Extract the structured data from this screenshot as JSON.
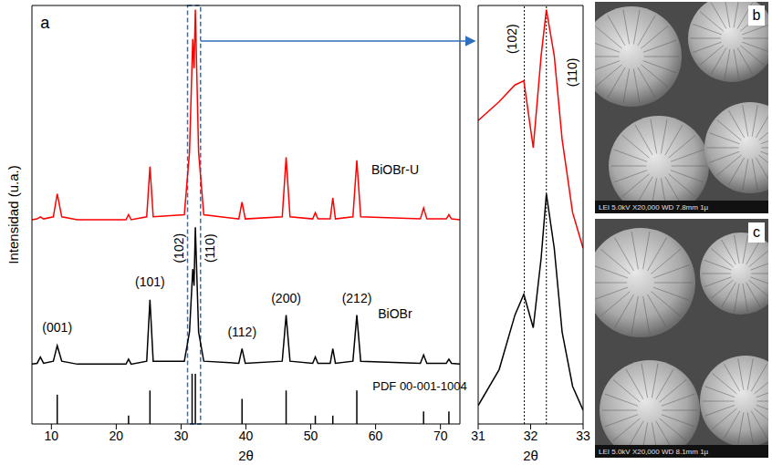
{
  "chart_data": [
    {
      "type": "line",
      "panel": "a",
      "xlabel": "2θ",
      "ylabel": "Intensidad (u.a.)",
      "xlim": [
        7,
        73
      ],
      "xticks": [
        10,
        20,
        30,
        40,
        50,
        60,
        70
      ],
      "ylim": [
        0,
        100
      ],
      "tick_labels": "x",
      "series": [
        {
          "name": "BiOBr-U",
          "color": "#ff0000",
          "x": [
            7,
            7.8,
            8.3,
            8.8,
            10.3,
            10.9,
            11.6,
            14,
            21.5,
            21.9,
            22.3,
            24.7,
            25.2,
            25.7,
            30.5,
            31.3,
            31.8,
            32.0,
            32.2,
            32.7,
            33.5,
            38.9,
            39.4,
            39.9,
            45.6,
            46.2,
            46.8,
            50.3,
            50.7,
            51.1,
            53.0,
            53.4,
            53.8,
            56.5,
            57.1,
            57.7,
            66.9,
            67.4,
            67.9,
            70.9,
            71.3,
            71.7,
            73
          ],
          "values": [
            48.8,
            49,
            49.5,
            49,
            49.5,
            55,
            49.5,
            48.8,
            48.8,
            50,
            48.8,
            49.5,
            61.5,
            49.5,
            50,
            65,
            92,
            85,
            99,
            65,
            50,
            49,
            53,
            49,
            49.5,
            63.7,
            49.5,
            49,
            50.5,
            49,
            49,
            54,
            49,
            49.5,
            63,
            49.5,
            49,
            51.6,
            49,
            49,
            50,
            49,
            48.8
          ]
        },
        {
          "name": "BiOBr",
          "color": "#000000",
          "x": [
            7,
            7.8,
            8.3,
            8.8,
            10.3,
            10.9,
            11.6,
            14,
            21.5,
            21.9,
            22.3,
            24.7,
            25.2,
            25.7,
            30.5,
            31.3,
            31.8,
            32.0,
            32.2,
            32.7,
            33.5,
            38.9,
            39.4,
            39.9,
            45.6,
            46.2,
            46.8,
            50.3,
            50.7,
            51.1,
            53.0,
            53.4,
            53.8,
            56.5,
            57.1,
            57.7,
            66.9,
            67.4,
            67.9,
            70.9,
            71.3,
            71.7,
            73
          ],
          "values": [
            14.3,
            14.5,
            16,
            14.5,
            15,
            18.7,
            15,
            14.3,
            14.3,
            15.5,
            14.3,
            15,
            29.7,
            15,
            15,
            22,
            37,
            33,
            47,
            22,
            15,
            14.5,
            18,
            14.5,
            15,
            26,
            15,
            14.5,
            16,
            14.5,
            14.5,
            18,
            14.5,
            15,
            26,
            15,
            14.5,
            16.5,
            14.5,
            14.5,
            15.5,
            14.5,
            14.3
          ]
        },
        {
          "name": "PDF 00-001-1004",
          "type": "stem",
          "color": "#000000",
          "x": [
            10.9,
            21.9,
            25.2,
            31.7,
            32.2,
            39.4,
            46.2,
            50.7,
            53.4,
            57.1,
            67.4,
            71.3
          ],
          "values": [
            7,
            2,
            8,
            12,
            12,
            6,
            8,
            2,
            2,
            8,
            3,
            3
          ]
        }
      ],
      "annotations": [
        {
          "text": "(001)",
          "x": 10.9,
          "y": 23
        },
        {
          "text": "(101)",
          "x": 25.2,
          "y": 34
        },
        {
          "text": "(102)",
          "x": 29.6,
          "y": 42
        },
        {
          "text": "(110)",
          "x": 34.4,
          "y": 42
        },
        {
          "text": "(112)",
          "x": 39.4,
          "y": 22
        },
        {
          "text": "(200)",
          "x": 46.2,
          "y": 30
        },
        {
          "text": "(212)",
          "x": 57.1,
          "y": 30
        }
      ]
    },
    {
      "type": "line",
      "xlabel": "2θ",
      "xlim": [
        31,
        33
      ],
      "xticks": [
        31,
        32,
        33
      ],
      "ylim": [
        0,
        100
      ],
      "tick_labels": "x",
      "vlines": [
        31.88,
        32.3
      ],
      "series": [
        {
          "color": "#ff0000",
          "x": [
            31,
            31.4,
            31.7,
            31.87,
            32.05,
            32.2,
            32.3,
            32.45,
            32.6,
            32.8,
            33
          ],
          "values": [
            72.5,
            77,
            81,
            82,
            66,
            88,
            99,
            88,
            68,
            50.5,
            42
          ]
        },
        {
          "color": "#000000",
          "x": [
            31,
            31.4,
            31.7,
            31.87,
            32.05,
            32.2,
            32.3,
            32.45,
            32.6,
            32.8,
            33
          ],
          "values": [
            4.4,
            13,
            26,
            31,
            23,
            39.6,
            55,
            42,
            22,
            9,
            3.3
          ]
        }
      ],
      "annotations": [
        {
          "text": "(102)",
          "x": 31.65,
          "y": 92
        },
        {
          "text": "(110)",
          "x": 32.8,
          "y": 84
        }
      ]
    }
  ],
  "images": [
    {
      "label": "b",
      "caption": "LEI 5.0kV X20,000 WD 7.8mm 1µ"
    },
    {
      "label": "c",
      "caption": "LEI 5.0kV X20,000 WD 8.1mm 1µ"
    }
  ]
}
